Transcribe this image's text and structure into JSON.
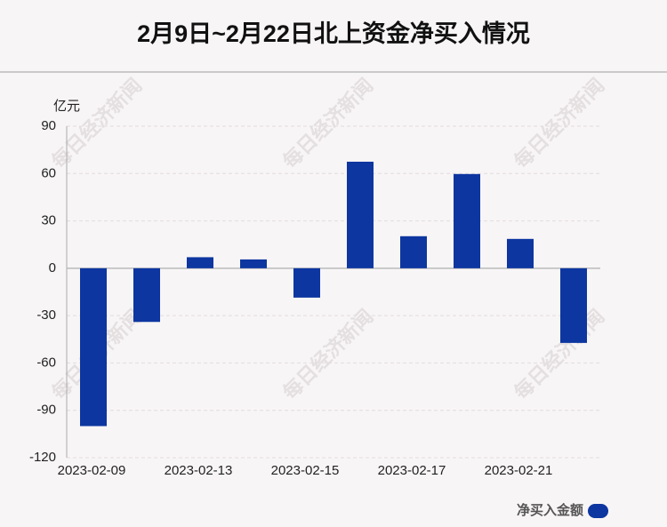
{
  "chart_data": {
    "type": "bar",
    "title": "2月9日~2月22日北上资金净买入情况",
    "y_label": "亿元",
    "watermark": "每日经济新闻",
    "categories": [
      "2023-02-09",
      null,
      "2023-02-13",
      null,
      "2023-02-15",
      null,
      "2023-02-17",
      null,
      "2023-02-21",
      null
    ],
    "series": [
      {
        "name": "净买入金额",
        "color": "#0d36a0",
        "values": [
          -100,
          -34,
          7,
          5.6,
          -18.6,
          67.5,
          20.3,
          59.7,
          18.6,
          -47.3
        ]
      }
    ],
    "ylim": [
      -120,
      90
    ],
    "yticks": [
      -120,
      -90,
      -60,
      -30,
      0,
      30,
      60,
      90
    ],
    "grid": true,
    "legend": "bottom-right"
  }
}
